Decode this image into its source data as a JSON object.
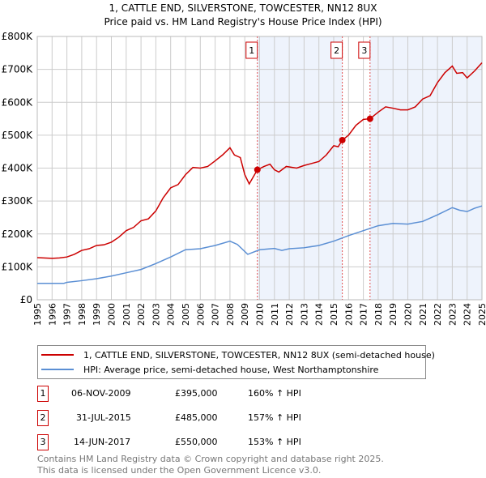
{
  "chart_data": {
    "type": "line",
    "title": "1, CATTLE END, SILVERSTONE, TOWCESTER, NN12 8UX",
    "subtitle": "Price paid vs. HM Land Registry's House Price Index (HPI)",
    "xlim": [
      1995,
      2025
    ],
    "ylim": [
      0,
      800000
    ],
    "y_ticks": [
      {
        "v": 0,
        "label": "£0"
      },
      {
        "v": 100000,
        "label": "£100K"
      },
      {
        "v": 200000,
        "label": "£200K"
      },
      {
        "v": 300000,
        "label": "£300K"
      },
      {
        "v": 400000,
        "label": "£400K"
      },
      {
        "v": 500000,
        "label": "£500K"
      },
      {
        "v": 600000,
        "label": "£600K"
      },
      {
        "v": 700000,
        "label": "£700K"
      },
      {
        "v": 800000,
        "label": "£800K"
      }
    ],
    "x_ticks": [
      "1995",
      "1996",
      "1997",
      "1998",
      "1999",
      "2000",
      "2001",
      "2002",
      "2003",
      "2004",
      "2005",
      "2006",
      "2007",
      "2008",
      "2009",
      "2010",
      "2011",
      "2012",
      "2013",
      "2014",
      "2015",
      "2016",
      "2017",
      "2018",
      "2019",
      "2020",
      "2021",
      "2022",
      "2023",
      "2024",
      "2025"
    ],
    "series": [
      {
        "name": "1, CATTLE END, SILVERSTONE, TOWCESTER, NN12 8UX (semi-detached house)",
        "color": "#cc0000",
        "points": [
          [
            1995,
            128
          ],
          [
            1996,
            126
          ],
          [
            1996.5,
            127
          ],
          [
            1997,
            130
          ],
          [
            1997.5,
            138
          ],
          [
            1998,
            150
          ],
          [
            1998.5,
            155
          ],
          [
            1999,
            165
          ],
          [
            1999.5,
            167
          ],
          [
            2000,
            175
          ],
          [
            2000.5,
            190
          ],
          [
            2001,
            210
          ],
          [
            2001.5,
            220
          ],
          [
            2002,
            240
          ],
          [
            2002.5,
            246
          ],
          [
            2003,
            270
          ],
          [
            2003.5,
            310
          ],
          [
            2004,
            340
          ],
          [
            2004.5,
            350
          ],
          [
            2005,
            380
          ],
          [
            2005.5,
            402
          ],
          [
            2006,
            400
          ],
          [
            2006.5,
            405
          ],
          [
            2007,
            422
          ],
          [
            2007.5,
            440
          ],
          [
            2008,
            462
          ],
          [
            2008.3,
            440
          ],
          [
            2008.7,
            432
          ],
          [
            2009,
            380
          ],
          [
            2009.3,
            352
          ],
          [
            2009.85,
            395
          ],
          [
            2010.3,
            405
          ],
          [
            2010.7,
            412
          ],
          [
            2011,
            395
          ],
          [
            2011.3,
            388
          ],
          [
            2011.8,
            405
          ],
          [
            2012.5,
            400
          ],
          [
            2013,
            408
          ],
          [
            2013.5,
            414
          ],
          [
            2014,
            420
          ],
          [
            2014.5,
            440
          ],
          [
            2015,
            468
          ],
          [
            2015.3,
            465
          ],
          [
            2015.58,
            485
          ],
          [
            2016,
            500
          ],
          [
            2016.5,
            530
          ],
          [
            2017,
            548
          ],
          [
            2017.45,
            550
          ],
          [
            2018,
            570
          ],
          [
            2018.5,
            586
          ],
          [
            2019,
            582
          ],
          [
            2019.5,
            577
          ],
          [
            2020,
            577
          ],
          [
            2020.5,
            586
          ],
          [
            2021,
            610
          ],
          [
            2021.5,
            620
          ],
          [
            2022,
            660
          ],
          [
            2022.5,
            690
          ],
          [
            2023,
            710
          ],
          [
            2023.3,
            688
          ],
          [
            2023.7,
            690
          ],
          [
            2024,
            674
          ],
          [
            2024.5,
            695
          ],
          [
            2025,
            720
          ]
        ]
      },
      {
        "name": "HPI: Average price, semi-detached house, West Northamptonshire",
        "color": "#5b8fd4",
        "points": [
          [
            1995,
            50
          ],
          [
            1996,
            50
          ],
          [
            1996.8,
            50
          ],
          [
            1997,
            53
          ],
          [
            1998,
            58
          ],
          [
            1999,
            64
          ],
          [
            2000,
            72
          ],
          [
            2001,
            82
          ],
          [
            2002,
            92
          ],
          [
            2003,
            110
          ],
          [
            2004,
            130
          ],
          [
            2005,
            152
          ],
          [
            2006,
            155
          ],
          [
            2007,
            165
          ],
          [
            2008,
            178
          ],
          [
            2008.5,
            168
          ],
          [
            2009.2,
            138
          ],
          [
            2010,
            152
          ],
          [
            2011,
            156
          ],
          [
            2011.5,
            150
          ],
          [
            2012,
            155
          ],
          [
            2013,
            158
          ],
          [
            2014,
            165
          ],
          [
            2015,
            178
          ],
          [
            2016,
            195
          ],
          [
            2017,
            210
          ],
          [
            2018,
            225
          ],
          [
            2019,
            232
          ],
          [
            2020,
            230
          ],
          [
            2021,
            238
          ],
          [
            2022,
            258
          ],
          [
            2023,
            280
          ],
          [
            2023.5,
            272
          ],
          [
            2024,
            268
          ],
          [
            2024.5,
            278
          ],
          [
            2025,
            285
          ]
        ]
      }
    ],
    "sales": [
      {
        "n": "1",
        "x": 2009.85,
        "price": 395000,
        "date": "06-NOV-2009",
        "price_label": "£395,000",
        "hpi": "160% ↑ HPI"
      },
      {
        "n": "2",
        "x": 2015.58,
        "price": 485000,
        "date": "31-JUL-2015",
        "price_label": "£485,000",
        "hpi": "157% ↑ HPI"
      },
      {
        "n": "3",
        "x": 2017.45,
        "price": 550000,
        "date": "14-JUN-2017",
        "price_label": "£550,000",
        "hpi": "153% ↑ HPI"
      }
    ]
  },
  "footer": {
    "line1": "Contains HM Land Registry data © Crown copyright and database right 2025.",
    "line2": "This data is licensed under the Open Government Licence v3.0."
  }
}
